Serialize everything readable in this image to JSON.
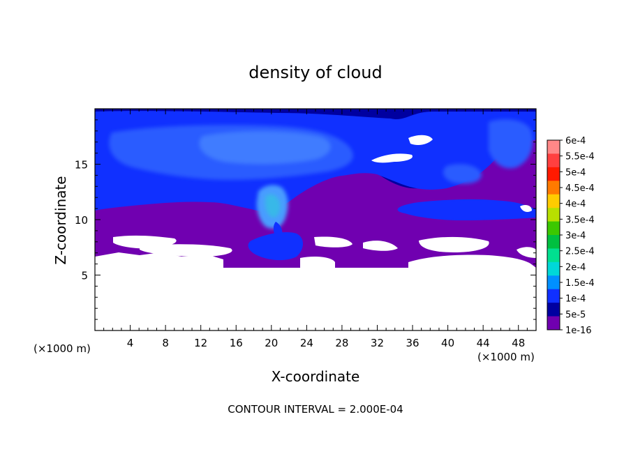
{
  "chart_data": {
    "type": "heatmap",
    "title": "density of cloud",
    "xlabel": "X-coordinate",
    "ylabel": "Z-coordinate",
    "x_unit_left": "(×1000 m)",
    "x_unit_right": "(×1000 m)",
    "footer": "CONTOUR INTERVAL = 2.000E-04",
    "xlim": [
      0,
      50
    ],
    "ylim": [
      0,
      20
    ],
    "x_ticks": [
      4,
      8,
      12,
      16,
      20,
      24,
      28,
      32,
      36,
      40,
      44,
      48
    ],
    "y_ticks": [
      5,
      10,
      15
    ],
    "colorbar": {
      "labels": [
        "6e-4",
        "5.5e-4",
        "5e-4",
        "4.5e-4",
        "4e-4",
        "3.5e-4",
        "3e-4",
        "2.5e-4",
        "2e-4",
        "1.5e-4",
        "1e-4",
        "5e-5",
        "1e-16"
      ],
      "colors": [
        "#ff8888",
        "#ff4040",
        "#ff1a00",
        "#ff7a00",
        "#ffcc00",
        "#b8e000",
        "#3cc800",
        "#00c040",
        "#00e090",
        "#00d8d8",
        "#0090ff",
        "#1030ff",
        "#0000a0",
        "#7000b0"
      ]
    },
    "cloud_base_km": 5.5,
    "cloud_top_km": 19.8
  }
}
